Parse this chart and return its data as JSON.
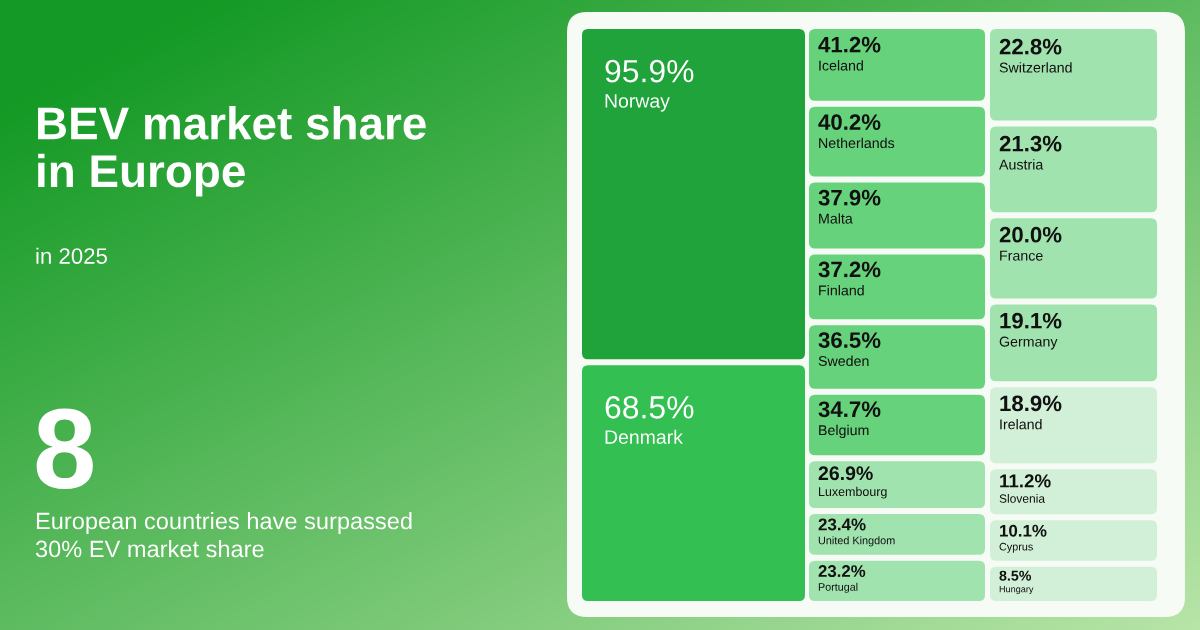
{
  "chart_data": {
    "type": "other",
    "title": "BEV market share in Europe",
    "subtitle": "in 2025",
    "categories": [
      "Norway",
      "Denmark",
      "Iceland",
      "Netherlands",
      "Malta",
      "Finland",
      "Sweden",
      "Belgium",
      "Luxembourg",
      "United Kingdom",
      "Portugal",
      "Switzerland",
      "Austria",
      "France",
      "Germany",
      "Ireland",
      "Slovenia",
      "Cyprus",
      "Hungary"
    ],
    "values": [
      95.9,
      68.5,
      41.2,
      40.2,
      37.9,
      37.2,
      36.5,
      34.7,
      26.9,
      23.4,
      23.2,
      22.8,
      21.3,
      20.0,
      19.1,
      18.9,
      11.2,
      10.1,
      8.5
    ],
    "value_labels": [
      "95.9%",
      "68.5%",
      "41.2%",
      "40.2%",
      "37.9%",
      "37.2%",
      "36.5%",
      "34.7%",
      "26.9%",
      "23.4%",
      "23.2%",
      "22.8%",
      "21.3%",
      "20.0%",
      "19.1%",
      "18.9%",
      "11.2%",
      "10.1%",
      "8.5%"
    ],
    "colors": [
      "#1fa33a",
      "#33bf51",
      "#66d27b",
      "#66d27b",
      "#66d27b",
      "#66d27b",
      "#66d27b",
      "#66d27b",
      "#a1e3ae",
      "#a1e3ae",
      "#a1e3ae",
      "#a1e3ae",
      "#a1e3ae",
      "#a1e3ae",
      "#a1e3ae",
      "#d2f0d8",
      "#d2f0d8",
      "#d2f0d8",
      "#d2f0d8"
    ],
    "annotations": [
      "8",
      "European countries have surpassed 30% EV market share"
    ]
  }
}
